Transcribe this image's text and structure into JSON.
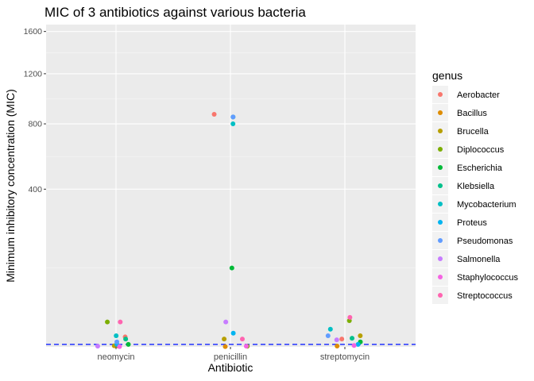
{
  "chart_data": {
    "type": "scatter",
    "title": "MIC of 3 antibiotics against various bacteria",
    "xlabel": "Antibiotic",
    "ylabel": "Minimum inhibitory concentration (MIC)",
    "categories": [
      "neomycin",
      "penicillin",
      "streptomycin"
    ],
    "y_scale": "sqrt",
    "ylim": [
      0,
      1650
    ],
    "y_ticks": [
      {
        "value": 400,
        "label": "400"
      },
      {
        "value": 800,
        "label": "800"
      },
      {
        "value": 1200,
        "label": "1200"
      },
      {
        "value": 1600,
        "label": "1600"
      }
    ],
    "reference_line": {
      "value": 0.1,
      "color": "#2433FF",
      "style": "dashed"
    },
    "legend": {
      "title": "genus",
      "position": "right",
      "entries": [
        {
          "name": "Aerobacter",
          "color": "#F8766D"
        },
        {
          "name": "Bacillus",
          "color": "#DE8C00"
        },
        {
          "name": "Brucella",
          "color": "#B79F00"
        },
        {
          "name": "Diplococcus",
          "color": "#7CAE00"
        },
        {
          "name": "Escherichia",
          "color": "#00BA38"
        },
        {
          "name": "Klebsiella",
          "color": "#00C08B"
        },
        {
          "name": "Mycobacterium",
          "color": "#00BFC4"
        },
        {
          "name": "Proteus",
          "color": "#00B4F0"
        },
        {
          "name": "Pseudomonas",
          "color": "#619CFF"
        },
        {
          "name": "Salmonella",
          "color": "#C77CFF"
        },
        {
          "name": "Staphylococcus",
          "color": "#F564E3"
        },
        {
          "name": "Streptococcus",
          "color": "#FF64B0"
        }
      ]
    },
    "series": [
      {
        "name": "Aerobacter",
        "neomycin": 1.6,
        "penicillin": 870,
        "streptomycin": 1.0
      },
      {
        "name": "Bacillus",
        "neomycin": 0.007,
        "penicillin": 0.001,
        "streptomycin": 0.01
      },
      {
        "name": "Brucella",
        "neomycin": 0.02,
        "penicillin": 1.0,
        "streptomycin": 2.0
      },
      {
        "name": "Diplococcus",
        "neomycin": 10.0,
        "penicillin": 0.005,
        "streptomycin": 11.0
      },
      {
        "name": "Escherichia",
        "neomycin": 0.1,
        "penicillin": 100.0,
        "streptomycin": 0.4
      },
      {
        "name": "Klebsiella",
        "neomycin": 1.0,
        "penicillin": 850,
        "streptomycin": 1.2
      },
      {
        "name": "Mycobacterium",
        "neomycin": 2.0,
        "penicillin": 800,
        "streptomycin": 5.0
      },
      {
        "name": "Proteus",
        "neomycin": 0.1,
        "penicillin": 3.0,
        "streptomycin": 0.1
      },
      {
        "name": "Pseudomonas",
        "neomycin": 0.4,
        "penicillin": 850,
        "streptomycin": 2.0
      },
      {
        "name": "Salmonella",
        "neomycin": 0.008,
        "penicillin": 10.0,
        "streptomycin": 0.8
      },
      {
        "name": "Staphylococcus",
        "neomycin": 0.001,
        "penicillin": 0.007,
        "streptomycin": 0.03
      },
      {
        "name": "Streptococcus",
        "neomycin": 10.0,
        "penicillin": 1.0,
        "streptomycin": 14.0
      }
    ]
  }
}
